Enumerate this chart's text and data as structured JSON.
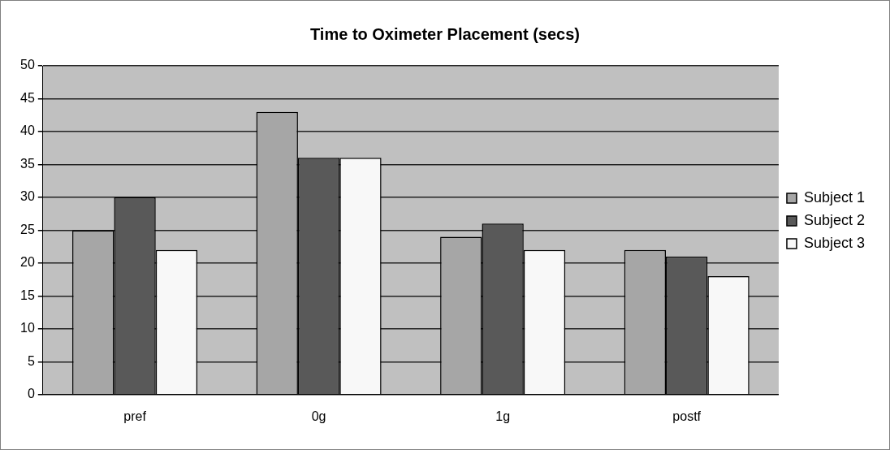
{
  "chart_data": {
    "type": "bar",
    "title": "Time to Oximeter Placement (secs)",
    "categories": [
      "pref",
      "0g",
      "1g",
      "postf"
    ],
    "series": [
      {
        "name": "Subject 1",
        "color": "#a6a6a6",
        "values": [
          25,
          43,
          24,
          22
        ]
      },
      {
        "name": "Subject 2",
        "color": "#595959",
        "values": [
          30,
          36,
          26,
          21
        ]
      },
      {
        "name": "Subject 3",
        "color": "#f8f8f8",
        "values": [
          22,
          36,
          22,
          18
        ]
      }
    ],
    "ylim": [
      0,
      50
    ],
    "yticks": [
      0,
      5,
      10,
      15,
      20,
      25,
      30,
      35,
      40,
      45,
      50
    ],
    "grid": "y",
    "legend": "right"
  }
}
